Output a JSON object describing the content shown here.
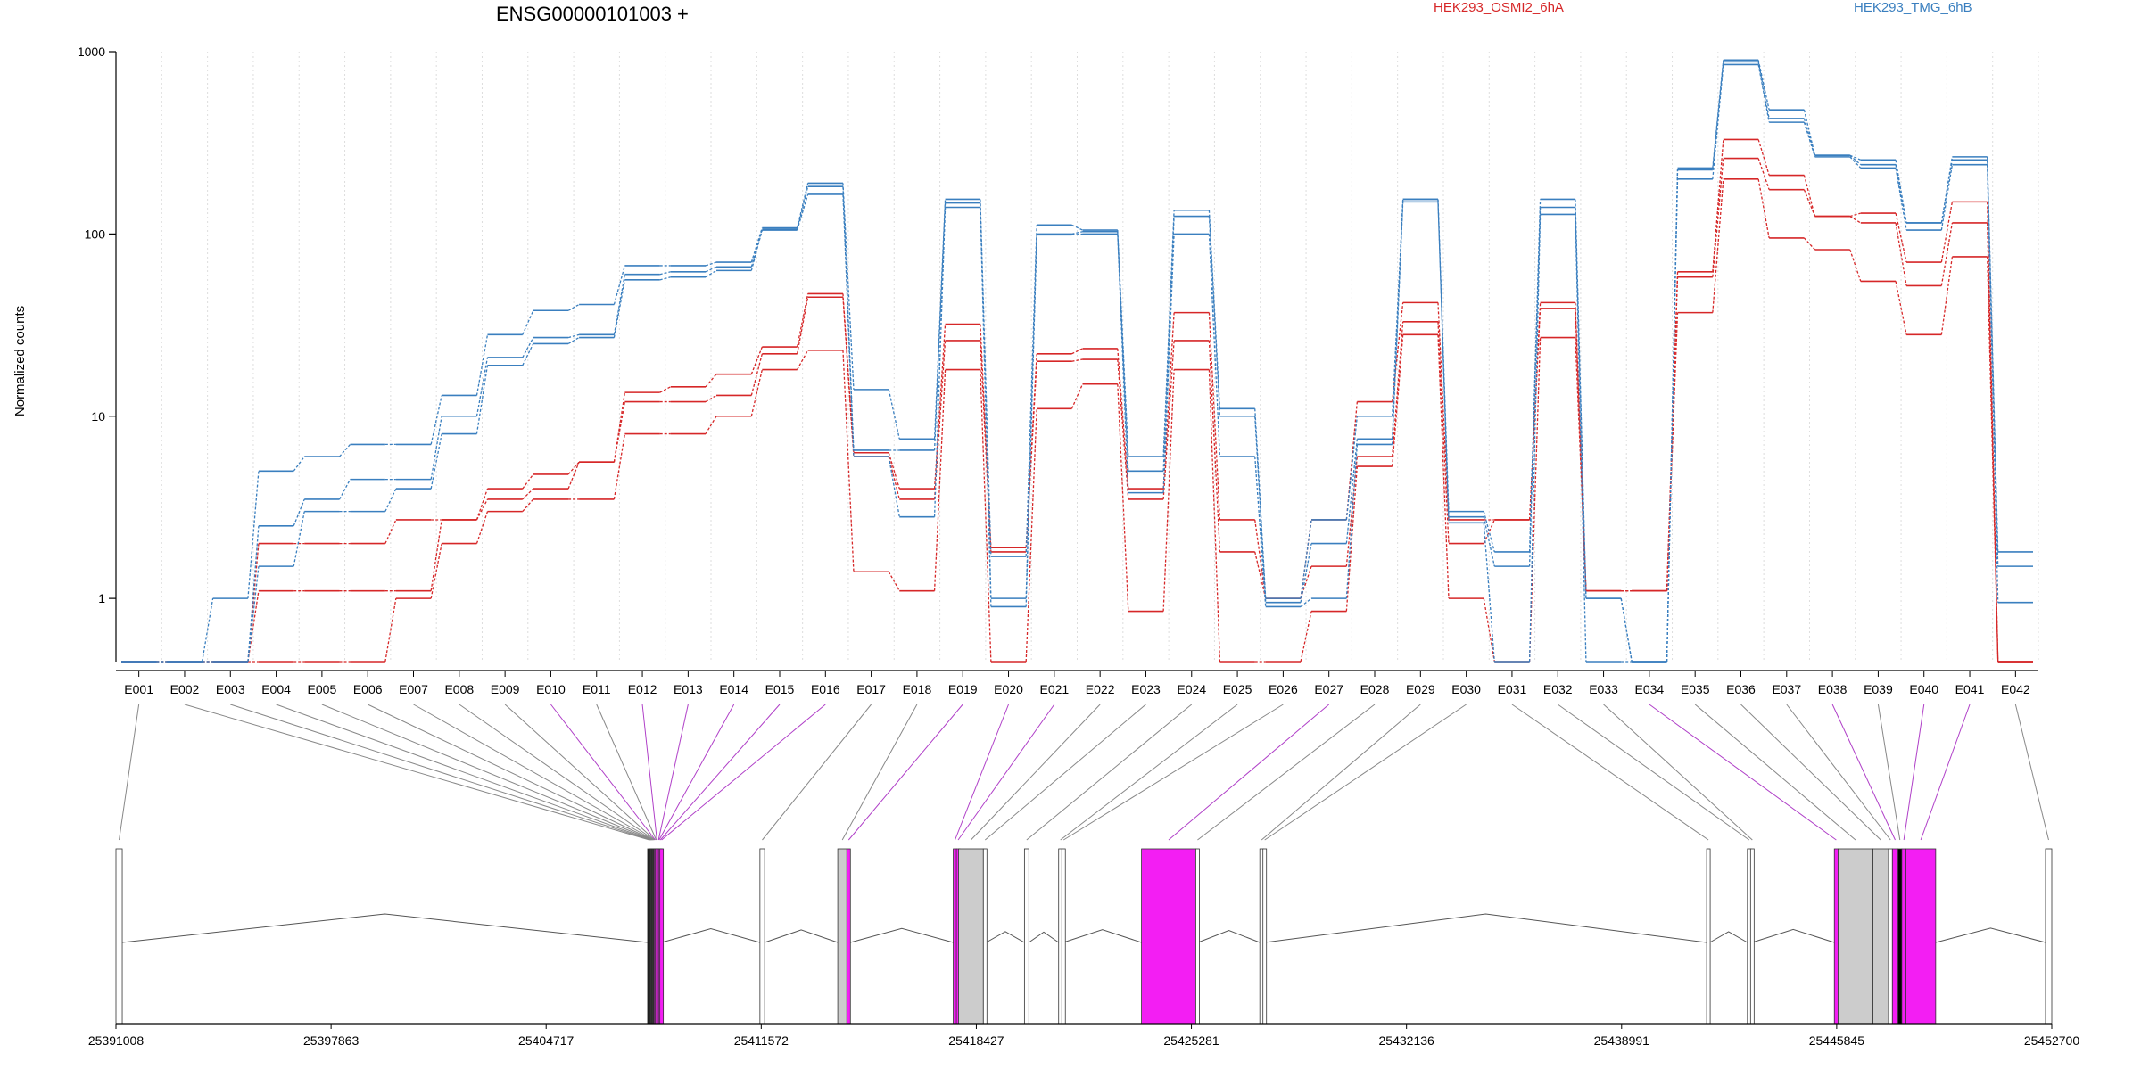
{
  "chart_data": {
    "type": "line",
    "title": "ENSG00000101003 +",
    "ylabel": "Normalized counts",
    "yscale": "log",
    "ylim": [
      0.45,
      1000
    ],
    "yticks": [
      "1",
      "10",
      "100",
      "1000"
    ],
    "yticks_values": [
      1,
      10,
      100,
      1000
    ],
    "legend": [
      {
        "name": "HEK293_OSMI2_6hA",
        "color": "#d62728"
      },
      {
        "name": "HEK293_TMG_6hB",
        "color": "#3a7fbf"
      }
    ],
    "legend_position": "top",
    "grid": "vertical dotted",
    "categories": [
      "E001",
      "E002",
      "E003",
      "E004",
      "E005",
      "E006",
      "E007",
      "E008",
      "E009",
      "E010",
      "E011",
      "E012",
      "E013",
      "E014",
      "E015",
      "E016",
      "E017",
      "E018",
      "E019",
      "E020",
      "E021",
      "E022",
      "E023",
      "E024",
      "E025",
      "E026",
      "E027",
      "E028",
      "E029",
      "E030",
      "E031",
      "E032",
      "E033",
      "E034",
      "E035",
      "E036",
      "E037",
      "E038",
      "E039",
      "E040",
      "E041",
      "E042"
    ],
    "series": [
      {
        "group": "HEK293_OSMI2_6hA",
        "color": "#d62728",
        "values": [
          0.45,
          0.45,
          0.45,
          2.0,
          2.0,
          2.0,
          2.7,
          2.7,
          4.0,
          4.8,
          5.6,
          13.5,
          14.5,
          17.0,
          24.0,
          47.0,
          6.3,
          4.0,
          32.0,
          1.9,
          22.0,
          23.5,
          4.0,
          37.0,
          2.7,
          1.0,
          2.7,
          12.0,
          42.0,
          2.7,
          2.7,
          42.0,
          1.1,
          1.1,
          62.0,
          330.0,
          210.0,
          125.0,
          130.0,
          70.0,
          150.0,
          0.45
        ]
      },
      {
        "group": "HEK293_OSMI2_6hA",
        "color": "#d62728",
        "values": [
          0.45,
          0.45,
          0.45,
          1.1,
          1.1,
          1.1,
          1.1,
          2.7,
          3.5,
          4.0,
          5.6,
          12.0,
          12.0,
          13.0,
          22.0,
          45.0,
          6.0,
          3.5,
          26.0,
          1.8,
          20.0,
          20.5,
          3.5,
          26.0,
          1.8,
          1.0,
          1.5,
          6.0,
          33.0,
          2.0,
          2.7,
          39.0,
          1.1,
          1.1,
          58.0,
          260.0,
          175.0,
          125.0,
          115.0,
          52.0,
          115.0,
          0.45
        ]
      },
      {
        "group": "HEK293_OSMI2_6hA",
        "color": "#d62728",
        "values": [
          0.45,
          0.45,
          0.45,
          0.45,
          0.45,
          0.45,
          1.0,
          2.0,
          3.0,
          3.5,
          3.5,
          8.0,
          8.0,
          10.0,
          18.0,
          23.0,
          1.4,
          1.1,
          18.0,
          0.45,
          11.0,
          15.0,
          0.85,
          18.0,
          0.45,
          0.45,
          0.85,
          5.3,
          28.0,
          1.0,
          0.45,
          27.0,
          1.1,
          1.1,
          37.0,
          200.0,
          95.0,
          82.0,
          55.0,
          28.0,
          75.0,
          0.45
        ]
      },
      {
        "group": "HEK293_TMG_6hB",
        "color": "#3a7fbf",
        "values": [
          0.45,
          0.45,
          1.0,
          5.0,
          6.0,
          7.0,
          7.0,
          13.0,
          28.0,
          38.0,
          41.0,
          67.0,
          67.0,
          70.0,
          108.0,
          190.0,
          14.0,
          7.5,
          155.0,
          1.7,
          112.0,
          105.0,
          6.0,
          135.0,
          11.0,
          1.0,
          2.7,
          10.0,
          155.0,
          3.0,
          1.8,
          155.0,
          1.0,
          0.45,
          230.0,
          900.0,
          480.0,
          270.0,
          255.0,
          115.0,
          265.0,
          1.8
        ]
      },
      {
        "group": "HEK293_TMG_6hB",
        "color": "#3a7fbf",
        "values": [
          0.45,
          0.45,
          0.45,
          2.5,
          3.5,
          4.5,
          4.5,
          10.0,
          21.0,
          27.0,
          28.0,
          60.0,
          62.0,
          66.0,
          106.0,
          182.0,
          6.5,
          6.5,
          148.0,
          1.0,
          100.0,
          103.0,
          5.0,
          125.0,
          10.0,
          0.95,
          2.0,
          7.5,
          155.0,
          2.8,
          1.5,
          140.0,
          1.0,
          0.45,
          225.0,
          880.0,
          430.0,
          270.0,
          240.0,
          115.0,
          255.0,
          1.5
        ]
      },
      {
        "group": "HEK293_TMG_6hB",
        "color": "#3a7fbf",
        "values": [
          0.45,
          0.45,
          0.45,
          1.5,
          3.0,
          3.0,
          4.0,
          8.0,
          19.0,
          25.0,
          27.0,
          56.0,
          58.0,
          63.0,
          105.0,
          165.0,
          6.0,
          2.8,
          140.0,
          0.9,
          99.0,
          100.0,
          3.8,
          100.0,
          6.0,
          0.9,
          1.0,
          7.0,
          150.0,
          2.6,
          0.45,
          128.0,
          0.45,
          0.45,
          200.0,
          850.0,
          410.0,
          265.0,
          230.0,
          105.0,
          240.0,
          0.95
        ]
      }
    ],
    "genomic_axis": {
      "ticks": [
        "25391008",
        "25397863",
        "25404717",
        "25411572",
        "25418427",
        "25425281",
        "25432136",
        "25438991",
        "25445845",
        "25452700"
      ],
      "tick_values": [
        25391008,
        25397863,
        25404717,
        25411572,
        25418427,
        25425281,
        25432136,
        25438991,
        25445845,
        25452700
      ],
      "range": [
        25391008,
        25452700
      ]
    },
    "exon_map": [
      {
        "id": "E001",
        "start": 25391008,
        "end": 25391208,
        "fill": "#ffffff"
      },
      {
        "id": "E002",
        "start": 25407950,
        "end": 25407985,
        "fill": "#000000"
      },
      {
        "id": "E003",
        "start": 25407985,
        "end": 25408010,
        "fill": "#000000"
      },
      {
        "id": "E004",
        "start": 25408010,
        "end": 25408040,
        "fill": "#000000"
      },
      {
        "id": "E005",
        "start": 25408040,
        "end": 25408060,
        "fill": "#000000"
      },
      {
        "id": "E006",
        "start": 25408060,
        "end": 25408080,
        "fill": "#000000"
      },
      {
        "id": "E007",
        "start": 25408080,
        "end": 25408100,
        "fill": "#000000"
      },
      {
        "id": "E008",
        "start": 25408100,
        "end": 25408120,
        "fill": "#000000"
      },
      {
        "id": "E009",
        "start": 25408120,
        "end": 25408140,
        "fill": "#000000"
      },
      {
        "id": "E010",
        "start": 25408140,
        "end": 25408170,
        "fill": "#f31ef3"
      },
      {
        "id": "E011",
        "start": 25408170,
        "end": 25408190,
        "fill": "#000000"
      },
      {
        "id": "E012",
        "start": 25408190,
        "end": 25408240,
        "fill": "#f31ef3"
      },
      {
        "id": "E013",
        "start": 25408240,
        "end": 25408260,
        "fill": "#f31ef3"
      },
      {
        "id": "E014",
        "start": 25408260,
        "end": 25408300,
        "fill": "#f31ef3"
      },
      {
        "id": "E015",
        "start": 25408300,
        "end": 25408340,
        "fill": "#f31ef3"
      },
      {
        "id": "E016",
        "start": 25408340,
        "end": 25408400,
        "fill": "#f31ef3"
      },
      {
        "id": "E017",
        "start": 25411530,
        "end": 25411680,
        "fill": "#ffffff"
      },
      {
        "id": "E018",
        "start": 25414010,
        "end": 25414300,
        "fill": "#cccccc"
      },
      {
        "id": "E019",
        "start": 25414300,
        "end": 25414410,
        "fill": "#f31ef3"
      },
      {
        "id": "E020",
        "start": 25417690,
        "end": 25417790,
        "fill": "#f31ef3"
      },
      {
        "id": "E021",
        "start": 25417790,
        "end": 25417860,
        "fill": "#f31ef3"
      },
      {
        "id": "E022",
        "start": 25417860,
        "end": 25418650,
        "fill": "#cccccc"
      },
      {
        "id": "E023",
        "start": 25418650,
        "end": 25418740,
        "fill": "#ffffff"
      },
      {
        "id": "E024",
        "start": 25419960,
        "end": 25420100,
        "fill": "#ffffff"
      },
      {
        "id": "E025",
        "start": 25421050,
        "end": 25421150,
        "fill": "#ffffff"
      },
      {
        "id": "E026",
        "start": 25421150,
        "end": 25421200,
        "fill": "#ffffff"
      },
      {
        "id": "E027",
        "start": 25423690,
        "end": 25425420,
        "fill": "#f31ef3"
      },
      {
        "id": "E028",
        "start": 25425420,
        "end": 25425490,
        "fill": "#ffffff"
      },
      {
        "id": "E029",
        "start": 25427460,
        "end": 25427560,
        "fill": "#ffffff"
      },
      {
        "id": "E030",
        "start": 25427560,
        "end": 25427620,
        "fill": "#ffffff"
      },
      {
        "id": "E031",
        "start": 25441700,
        "end": 25441800,
        "fill": "#ffffff"
      },
      {
        "id": "E032",
        "start": 25443000,
        "end": 25443100,
        "fill": "#ffffff"
      },
      {
        "id": "E033",
        "start": 25443100,
        "end": 25443150,
        "fill": "#ffffff"
      },
      {
        "id": "E034",
        "start": 25445770,
        "end": 25445890,
        "fill": "#f31ef3"
      },
      {
        "id": "E035",
        "start": 25445890,
        "end": 25447000,
        "fill": "#cccccc"
      },
      {
        "id": "E036",
        "start": 25447000,
        "end": 25447500,
        "fill": "#cccccc"
      },
      {
        "id": "E037",
        "start": 25447500,
        "end": 25447620,
        "fill": "#ffffff"
      },
      {
        "id": "E038",
        "start": 25447620,
        "end": 25447800,
        "fill": "#f31ef3"
      },
      {
        "id": "E039",
        "start": 25447800,
        "end": 25447920,
        "fill": "#000000"
      },
      {
        "id": "E040",
        "start": 25447920,
        "end": 25448050,
        "fill": "#f31ef3"
      },
      {
        "id": "E041",
        "start": 25448050,
        "end": 25449000,
        "fill": "#f31ef3"
      },
      {
        "id": "E042",
        "start": 25452500,
        "end": 25452700,
        "fill": "#ffffff"
      }
    ]
  }
}
